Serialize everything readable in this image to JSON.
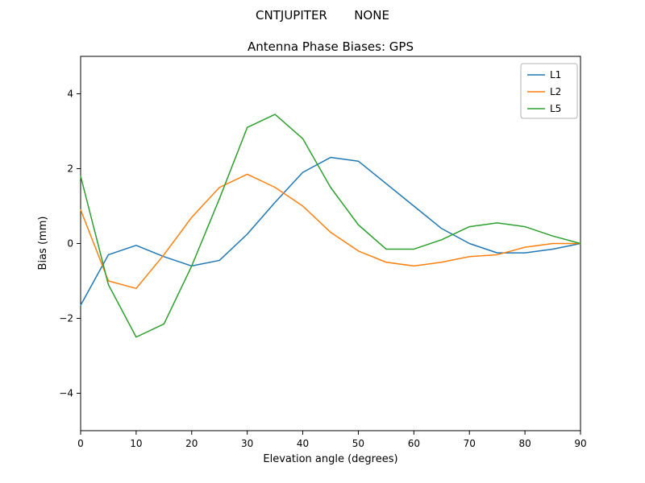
{
  "chart_data": {
    "type": "line",
    "title": "CNTJUPITER       NONE",
    "subtitle": "Antenna Phase Biases: GPS",
    "xlabel": "Elevation angle (degrees)",
    "ylabel": "Bias (mm)",
    "xlim": [
      0,
      90
    ],
    "ylim": [
      -5,
      5
    ],
    "xticks": [
      0,
      10,
      20,
      30,
      40,
      50,
      60,
      70,
      80,
      90
    ],
    "yticks": [
      -4,
      -2,
      0,
      2,
      4
    ],
    "grid": false,
    "legend_position": "upper right",
    "x": [
      0,
      5,
      10,
      15,
      20,
      25,
      30,
      35,
      40,
      45,
      50,
      55,
      60,
      65,
      70,
      75,
      80,
      85,
      90
    ],
    "series": [
      {
        "name": "L1",
        "color": "#1f77b4",
        "values": [
          -1.65,
          -0.3,
          -0.05,
          -0.35,
          -0.6,
          -0.45,
          0.25,
          1.1,
          1.9,
          2.3,
          2.2,
          1.6,
          1.0,
          0.4,
          0.0,
          -0.25,
          -0.25,
          -0.15,
          0.0
        ]
      },
      {
        "name": "L2",
        "color": "#ff7f0e",
        "values": [
          0.9,
          -1.0,
          -1.2,
          -0.3,
          0.7,
          1.5,
          1.85,
          1.5,
          1.0,
          0.3,
          -0.2,
          -0.5,
          -0.6,
          -0.5,
          -0.35,
          -0.3,
          -0.1,
          0.0,
          0.0
        ]
      },
      {
        "name": "L5",
        "color": "#2ca02c",
        "values": [
          1.8,
          -1.1,
          -2.5,
          -2.15,
          -0.6,
          1.2,
          3.1,
          3.45,
          2.8,
          1.5,
          0.5,
          -0.15,
          -0.15,
          0.1,
          0.45,
          0.55,
          0.45,
          0.2,
          0.0
        ]
      }
    ]
  }
}
